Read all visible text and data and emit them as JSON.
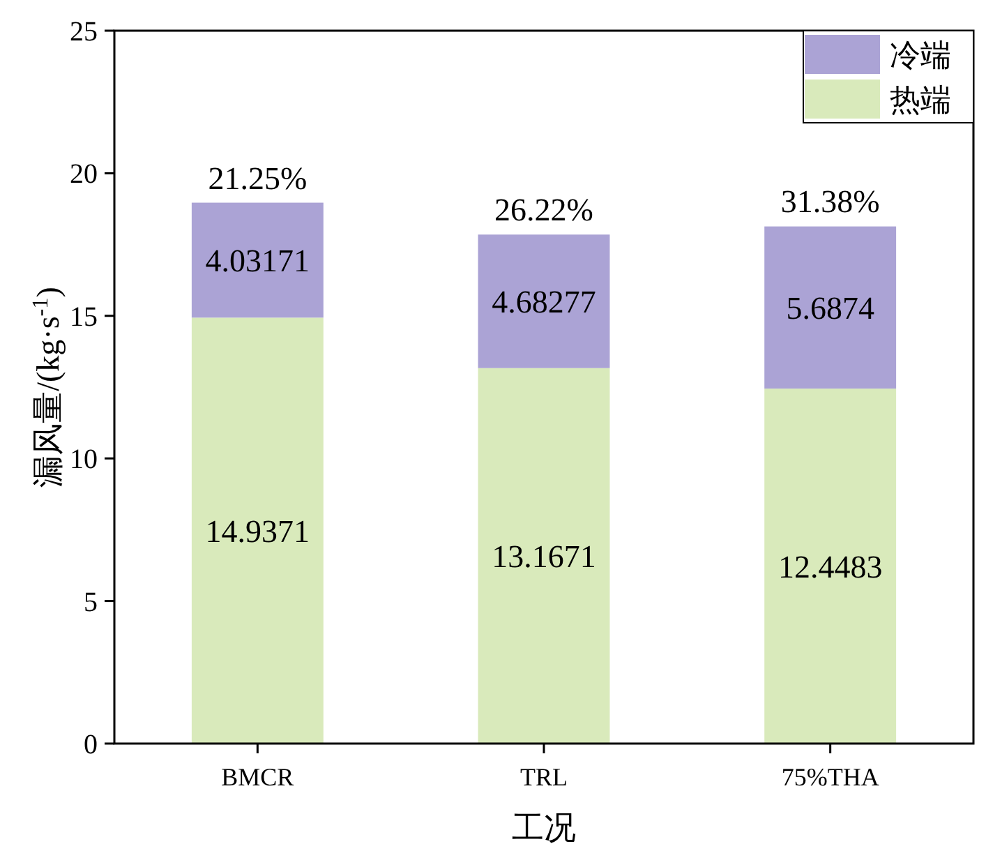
{
  "chart_data": {
    "type": "bar",
    "stacked": true,
    "categories": [
      "BMCR",
      "TRL",
      "75%THA"
    ],
    "series": [
      {
        "name": "热端",
        "color": "#d9eabb",
        "values": [
          14.9371,
          13.1671,
          12.4483
        ]
      },
      {
        "name": "冷端",
        "color": "#aba3d5",
        "values": [
          4.03171,
          4.68277,
          5.6874
        ]
      }
    ],
    "data_labels": true,
    "annotations": [
      {
        "text": "21.25%",
        "x": "BMCR",
        "y": 18.97
      },
      {
        "text": "26.22%",
        "x": "TRL",
        "y": 17.85
      },
      {
        "text": "31.38%",
        "x": "75%THA",
        "y": 18.14
      }
    ],
    "ylim": [
      0,
      25
    ],
    "yticks": [
      0,
      5,
      10,
      15,
      20,
      25
    ],
    "xlabel": "工况",
    "ylabel": "漏风量/(kg·s$^{-1}$)",
    "legend": "top right"
  }
}
